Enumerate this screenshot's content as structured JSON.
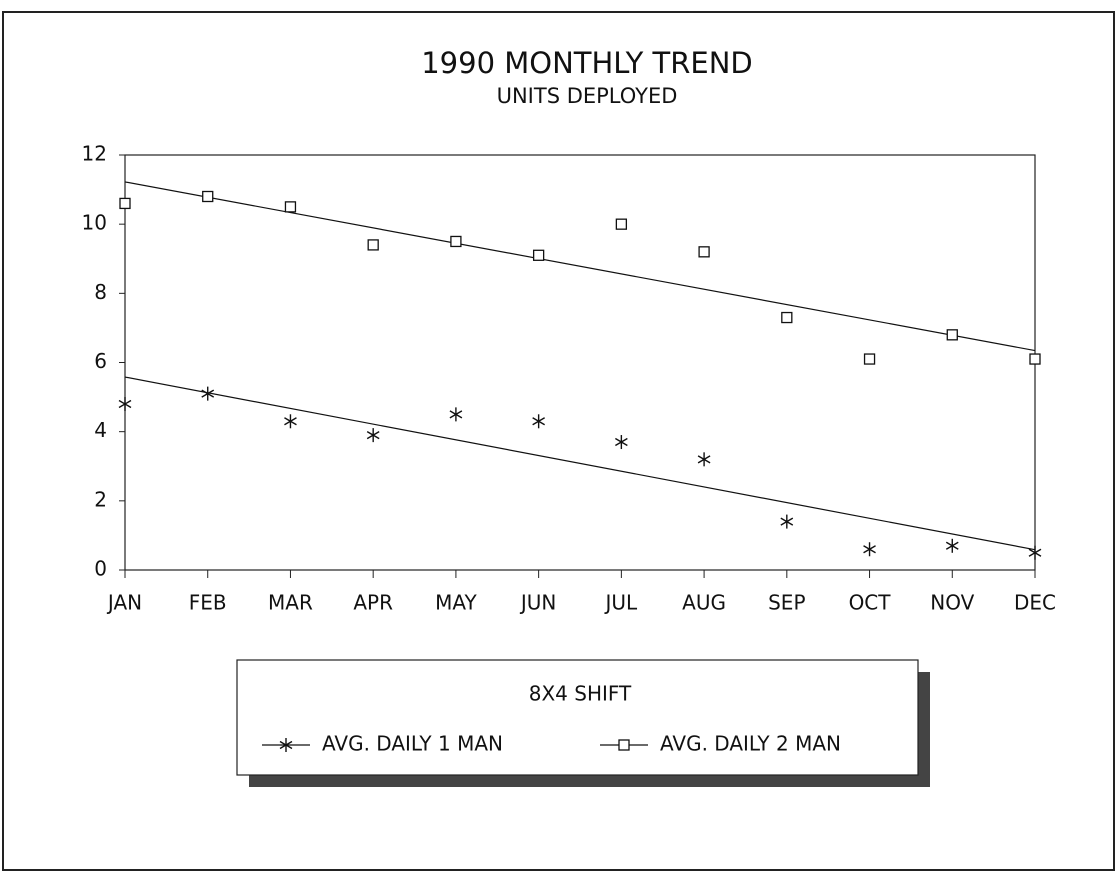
{
  "chart_data": {
    "type": "scatter",
    "title": "1990 MONTHLY TREND",
    "subtitle": "UNITS DEPLOYED",
    "categories": [
      "JAN",
      "FEB",
      "MAR",
      "APR",
      "MAY",
      "JUN",
      "JUL",
      "AUG",
      "SEP",
      "OCT",
      "NOV",
      "DEC"
    ],
    "series": [
      {
        "name": "AVG. DAILY 1 MAN",
        "color": "#111111",
        "marker": "asterisk",
        "values": [
          4.8,
          5.1,
          4.3,
          3.9,
          4.5,
          4.3,
          3.7,
          3.2,
          1.4,
          0.6,
          0.7,
          0.5
        ]
      },
      {
        "name": "AVG. DAILY 2 MAN",
        "color": "#111111",
        "marker": "square",
        "values": [
          10.6,
          10.8,
          10.5,
          9.4,
          9.5,
          9.1,
          10.0,
          9.2,
          7.3,
          6.1,
          6.8,
          6.1
        ]
      }
    ],
    "trendline": "linear",
    "ylim": [
      0,
      12
    ],
    "yticks": [
      0,
      2,
      4,
      6,
      8,
      10,
      12
    ],
    "legend_title": "8X4 SHIFT",
    "legend_position": "bottom"
  }
}
